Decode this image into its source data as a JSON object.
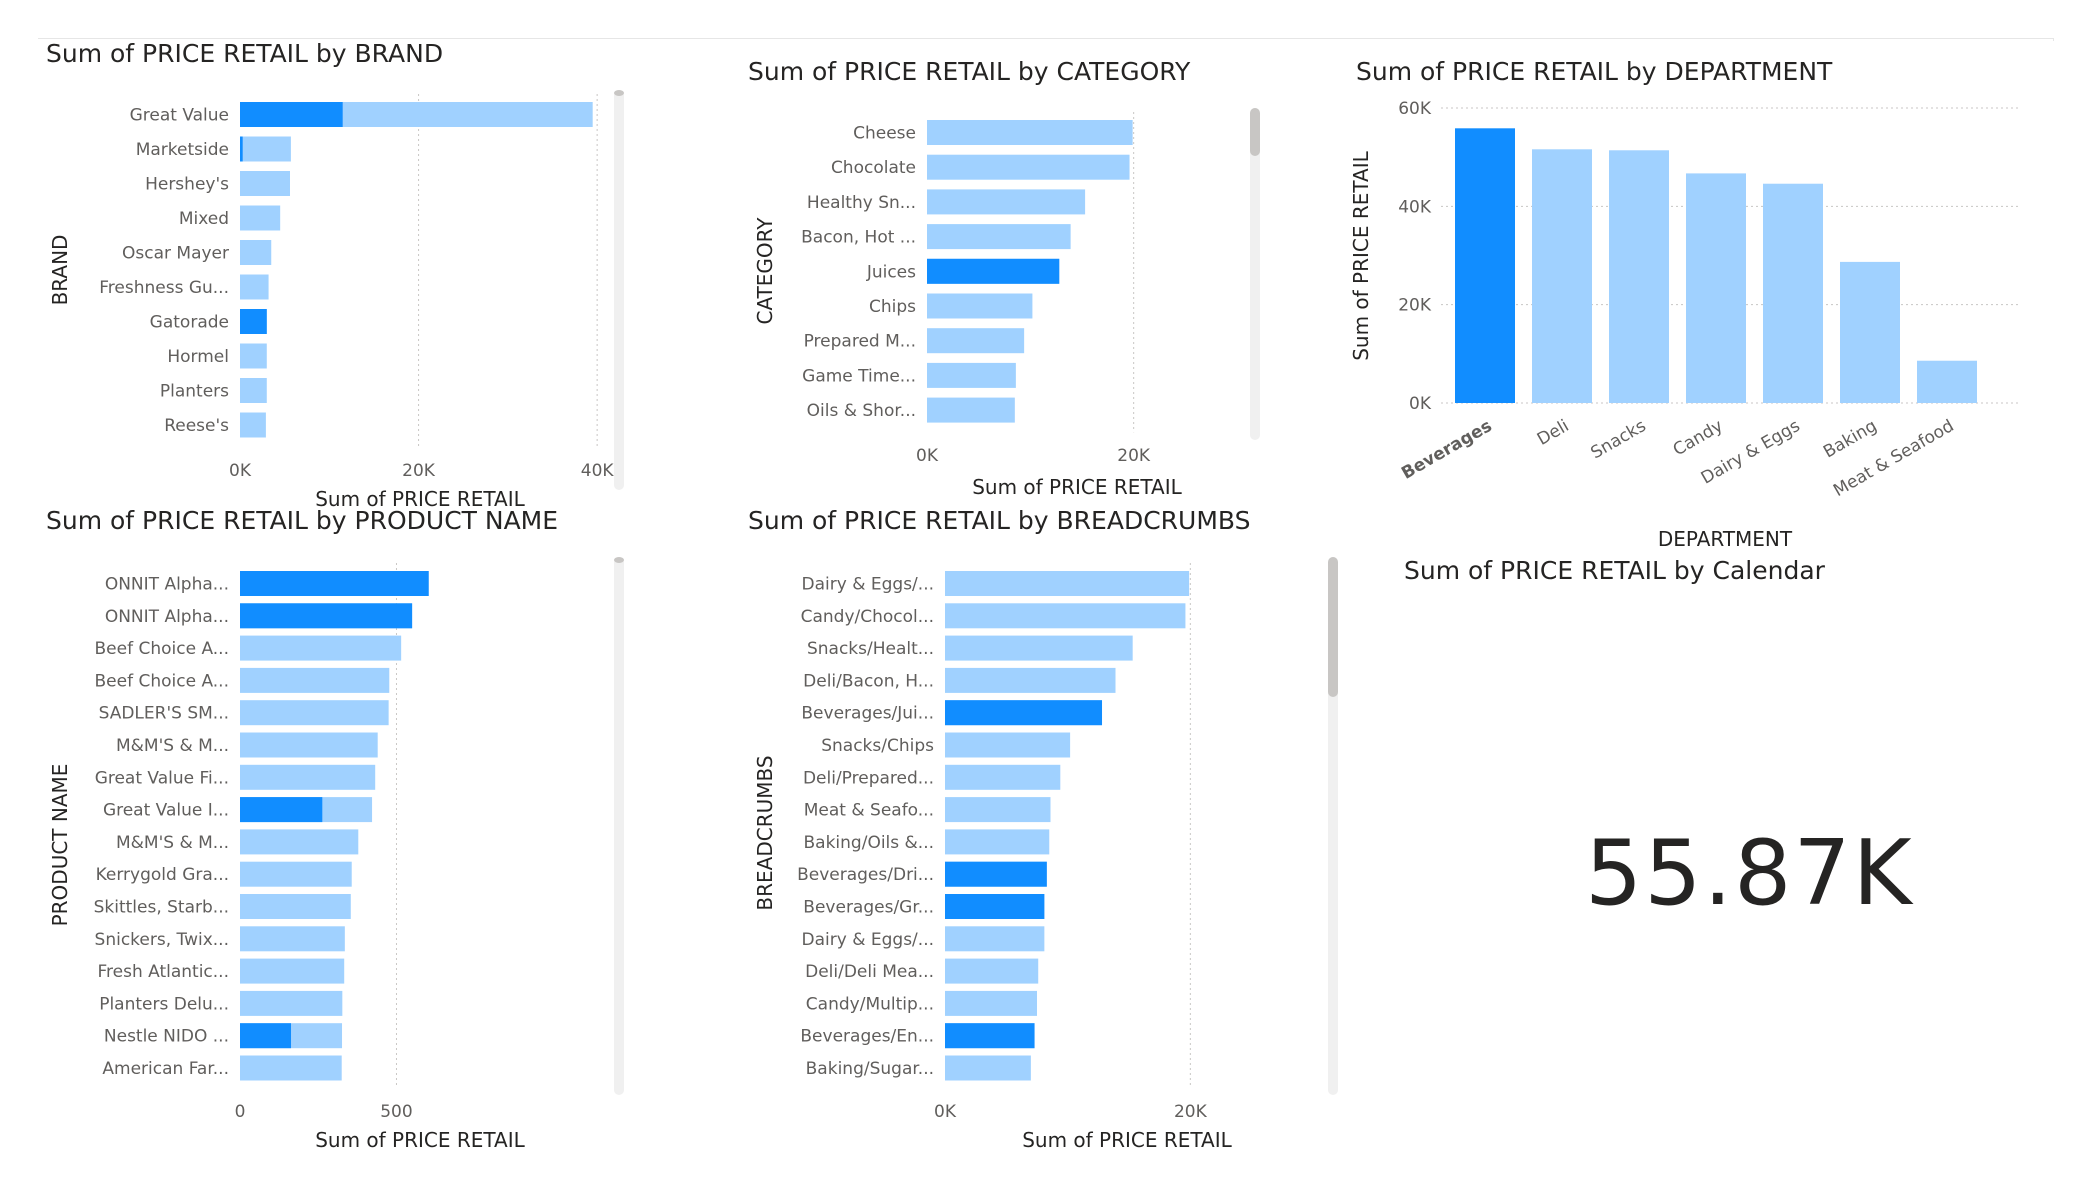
{
  "colors": {
    "highlight": "#118DFF",
    "base": "#A0D1FF",
    "axis_text": "#605E5C",
    "label_text": "#252423",
    "grid": "#C8C6C4",
    "scroll_track": "#F0F0F0",
    "scroll_thumb": "#C8C6C4"
  },
  "chart_data": [
    {
      "id": "brand",
      "type": "bar",
      "orientation": "horizontal",
      "title": "Sum of PRICE RETAIL by BRAND",
      "xlabel": "Sum of PRICE RETAIL",
      "ylabel": "BRAND",
      "xlim": [
        0,
        42000
      ],
      "xticks": [
        0,
        20000,
        40000
      ],
      "xtick_labels": [
        "0K",
        "20K",
        "40K"
      ],
      "categories": [
        "Great Value",
        "Marketside",
        "Hershey's",
        "Mixed",
        "Oscar Mayer",
        "Freshness Gu...",
        "Gatorade",
        "Hormel",
        "Planters",
        "Reese's"
      ],
      "values": [
        39500,
        5700,
        5600,
        4500,
        3500,
        3200,
        3000,
        3000,
        3000,
        2900
      ],
      "highlighted": [
        11500,
        300,
        0,
        0,
        0,
        0,
        3000,
        0,
        0,
        0
      ]
    },
    {
      "id": "category",
      "type": "bar",
      "orientation": "horizontal",
      "title": "Sum of PRICE RETAIL by CATEGORY",
      "xlabel": "Sum of PRICE RETAIL",
      "ylabel": "CATEGORY",
      "xlim": [
        0,
        30000
      ],
      "xticks": [
        0,
        20000
      ],
      "xtick_labels": [
        "0K",
        "20K"
      ],
      "categories": [
        "Cheese",
        "Chocolate",
        "Healthy Sn...",
        "Bacon, Hot ...",
        "Juices",
        "Chips",
        "Prepared M...",
        "Game Time...",
        "Oils & Shor..."
      ],
      "values": [
        19900,
        19600,
        15300,
        13900,
        12800,
        10200,
        9400,
        8600,
        8500
      ],
      "highlighted": [
        0,
        0,
        0,
        0,
        12800,
        0,
        0,
        0,
        0
      ]
    },
    {
      "id": "department",
      "type": "bar",
      "orientation": "vertical",
      "title": "Sum of PRICE RETAIL by DEPARTMENT",
      "xlabel": "DEPARTMENT",
      "ylabel": "Sum of PRICE RETAIL",
      "ylim": [
        0,
        60000
      ],
      "yticks": [
        0,
        20000,
        40000,
        60000
      ],
      "ytick_labels": [
        "0K",
        "20K",
        "40K",
        "60K"
      ],
      "categories": [
        "Beverages",
        "Deli",
        "Snacks",
        "Candy",
        "Dairy & Eggs",
        "Baking",
        "Meat & Seafood"
      ],
      "values": [
        55870,
        51600,
        51400,
        46700,
        44600,
        28700,
        8600
      ],
      "highlighted": [
        55870,
        0,
        0,
        0,
        0,
        0,
        0
      ]
    },
    {
      "id": "product",
      "type": "bar",
      "orientation": "horizontal",
      "title": "Sum of PRICE RETAIL by PRODUCT NAME",
      "xlabel": "Sum of PRICE RETAIL",
      "ylabel": "PRODUCT NAME",
      "xlim": [
        0,
        850
      ],
      "xticks": [
        0,
        500
      ],
      "xtick_labels": [
        "0",
        "500"
      ],
      "categories": [
        "ONNIT Alpha...",
        "ONNIT Alpha...",
        "Beef Choice A...",
        "Beef Choice A...",
        "SADLER'S SM...",
        "M&M'S & M...",
        "Great Value Fi...",
        "Great Value I...",
        "M&M'S & M...",
        "Kerrygold Gra...",
        "Skittles, Starb...",
        "Snickers, Twix...",
        "Fresh Atlantic...",
        "Planters Delu...",
        "Nestle NIDO ...",
        "American Far..."
      ],
      "values": [
        603,
        550,
        515,
        477,
        475,
        440,
        432,
        422,
        378,
        357,
        354,
        335,
        333,
        327,
        326,
        325
      ],
      "highlighted": [
        603,
        550,
        0,
        0,
        0,
        0,
        0,
        263,
        0,
        0,
        0,
        0,
        0,
        0,
        163,
        0
      ]
    },
    {
      "id": "breadcrumbs",
      "type": "bar",
      "orientation": "horizontal",
      "title": "Sum of PRICE RETAIL by BREADCRUMBS",
      "xlabel": "Sum of PRICE RETAIL",
      "ylabel": "BREADCRUMBS",
      "xlim": [
        0,
        30000
      ],
      "xticks": [
        0,
        20000
      ],
      "xtick_labels": [
        "0K",
        "20K"
      ],
      "categories": [
        "Dairy & Eggs/...",
        "Candy/Chocol...",
        "Snacks/Healt...",
        "Deli/Bacon, H...",
        "Beverages/Jui...",
        "Snacks/Chips",
        "Deli/Prepared...",
        "Meat & Seafo...",
        "Baking/Oils &...",
        "Beverages/Dri...",
        "Beverages/Gr...",
        "Dairy & Eggs/...",
        "Deli/Deli Mea...",
        "Candy/Multip...",
        "Beverages/En...",
        "Baking/Sugar..."
      ],
      "values": [
        19900,
        19600,
        15300,
        13900,
        12800,
        10200,
        9400,
        8600,
        8500,
        8300,
        8100,
        8100,
        7600,
        7500,
        7300,
        7000
      ],
      "highlighted": [
        0,
        0,
        0,
        0,
        12800,
        0,
        0,
        0,
        0,
        8300,
        8100,
        0,
        0,
        0,
        7300,
        0
      ]
    }
  ],
  "card": {
    "title": "Sum of PRICE RETAIL by Calendar",
    "value": "55.87K"
  }
}
